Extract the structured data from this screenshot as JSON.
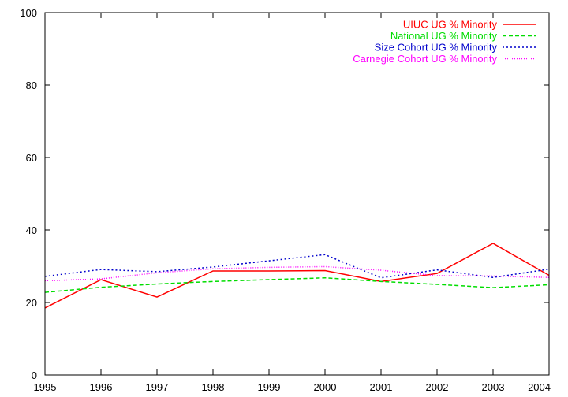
{
  "chart_data": {
    "type": "line",
    "title": "",
    "xlabel": "",
    "ylabel": "",
    "x": [
      1995,
      1996,
      1997,
      1998,
      1999,
      2000,
      2001,
      2002,
      2003,
      2004
    ],
    "xlim": [
      1995,
      2004
    ],
    "ylim": [
      0,
      100
    ],
    "xticks": [
      "1995",
      "1996",
      "1997",
      "1998",
      "1999",
      "2000",
      "2001",
      "2002",
      "2003",
      "2004"
    ],
    "yticks": [
      "0",
      "20",
      "40",
      "60",
      "80",
      "100"
    ],
    "grid": false,
    "legend_position": "top-right",
    "series": [
      {
        "name": "UIUC UG % Minority",
        "color": "#ff0000",
        "dash": "solid",
        "values": [
          18.5,
          26.3,
          21.5,
          28.7,
          28.7,
          28.8,
          25.8,
          28.0,
          36.3,
          27.5
        ]
      },
      {
        "name": "National UG % Minority",
        "color": "#00dd00",
        "dash": "dashed",
        "values": [
          22.8,
          24.2,
          25.1,
          25.8,
          26.3,
          26.8,
          25.8,
          25.0,
          24.1,
          24.9
        ]
      },
      {
        "name": "Size Cohort UG % Minority",
        "color": "#0000cc",
        "dash": "dotted",
        "values": [
          27.2,
          29.1,
          28.5,
          29.8,
          31.5,
          33.2,
          26.8,
          29.0,
          26.9,
          29.2
        ]
      },
      {
        "name": "Carnegie Cohort UG % Minority",
        "color": "#ff00ff",
        "dash": "fine-dotted",
        "values": [
          26.0,
          26.5,
          28.2,
          29.3,
          29.7,
          29.9,
          28.9,
          27.4,
          27.3,
          26.9
        ]
      }
    ]
  }
}
